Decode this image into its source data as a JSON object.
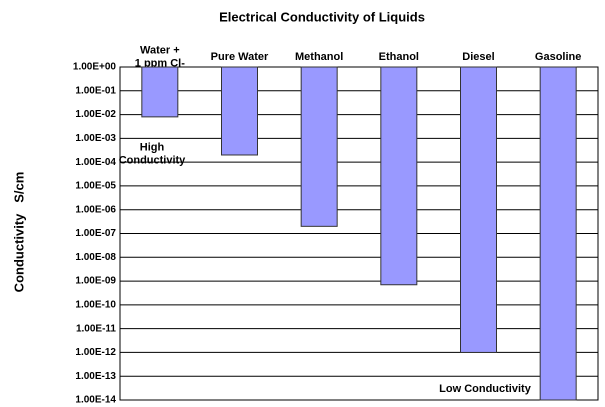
{
  "chart_data": {
    "type": "bar",
    "title": "Electrical Conductivity of Liquids",
    "categories": [
      "Water +\n1 ppm Cl-",
      "Pure Water",
      "Methanol",
      "Ethanol",
      "Diesel",
      "Gasoline"
    ],
    "values": [
      0.008,
      0.0002,
      2e-07,
      7e-10,
      1e-12,
      1e-14
    ],
    "color": "#9999ff",
    "y_label": "Conductivity   S/cm",
    "log_y": true,
    "grid": true,
    "ylim": [
      1e-14,
      1
    ],
    "yticks": [
      {
        "value": 1,
        "label": "1.00E+00"
      },
      {
        "value": 0.1,
        "label": "1.00E-01"
      },
      {
        "value": 0.01,
        "label": "1.00E-02"
      },
      {
        "value": 0.001,
        "label": "1.00E-03"
      },
      {
        "value": 0.0001,
        "label": "1.00E-04"
      },
      {
        "value": 1e-05,
        "label": "1.00E-05"
      },
      {
        "value": 1e-06,
        "label": "1.00E-06"
      },
      {
        "value": 1e-07,
        "label": "1.00E-07"
      },
      {
        "value": 1e-08,
        "label": "1.00E-08"
      },
      {
        "value": 1e-09,
        "label": "1.00E-09"
      },
      {
        "value": 1e-10,
        "label": "1.00E-10"
      },
      {
        "value": 1e-11,
        "label": "1.00E-11"
      },
      {
        "value": 1e-12,
        "label": "1.00E-12"
      },
      {
        "value": 1e-13,
        "label": "1.00E-13"
      },
      {
        "value": 1e-14,
        "label": "1.00E-14"
      }
    ],
    "annotations": [
      "High\nConductivity",
      "Low Conductivity"
    ]
  }
}
